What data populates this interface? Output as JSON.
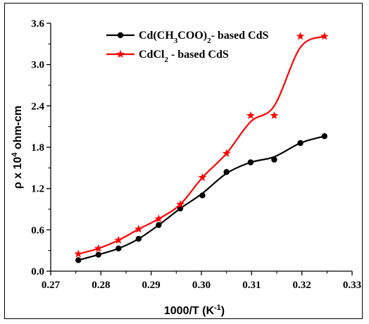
{
  "chart_data": {
    "type": "scatter",
    "xlabel": "1000/T (K",
    "xlabel_sup": "-1",
    "xlabel_end": ")",
    "ylabel_pre": "ρ x 10",
    "ylabel_sup": "4",
    "ylabel_post": " ohm-cm",
    "xlim": [
      0.27,
      0.33
    ],
    "ylim": [
      0.0,
      3.6
    ],
    "xticks": [
      0.27,
      0.28,
      0.29,
      0.3,
      0.31,
      0.32,
      0.33
    ],
    "xtick_labels": [
      "0.27",
      "0.28",
      "0.29",
      "0.30",
      "0.31",
      "0.32",
      "0.33"
    ],
    "yticks": [
      0.0,
      0.6,
      1.2,
      1.8,
      2.4,
      3.0,
      3.6
    ],
    "ytick_labels": [
      "0.0",
      "0.6",
      "1.2",
      "1.8",
      "2.4",
      "3.0",
      "3.6"
    ],
    "legend_position": "top-left",
    "series": [
      {
        "name": "Cd(CH3COO)2- based CdS",
        "legend_parts": [
          "Cd(CH",
          "3",
          "COO)",
          "2",
          "- based CdS"
        ],
        "color": "#000000",
        "marker": "circle",
        "points": [
          [
            0.2755,
            0.16
          ],
          [
            0.2795,
            0.24
          ],
          [
            0.2835,
            0.33
          ],
          [
            0.2875,
            0.47
          ],
          [
            0.2915,
            0.67
          ],
          [
            0.2958,
            0.91
          ],
          [
            0.3002,
            1.1
          ],
          [
            0.305,
            1.44
          ],
          [
            0.3098,
            1.58
          ],
          [
            0.3145,
            1.62
          ],
          [
            0.3197,
            1.86
          ],
          [
            0.3245,
            1.96
          ]
        ]
      },
      {
        "name": "CdCl2 - based CdS",
        "legend_parts": [
          "CdCl",
          "2",
          " - based CdS"
        ],
        "color": "#ff0000",
        "marker": "star",
        "points": [
          [
            0.2755,
            0.25
          ],
          [
            0.2795,
            0.33
          ],
          [
            0.2835,
            0.45
          ],
          [
            0.2875,
            0.61
          ],
          [
            0.2915,
            0.76
          ],
          [
            0.2958,
            0.97
          ],
          [
            0.3002,
            1.36
          ],
          [
            0.305,
            1.71
          ],
          [
            0.3098,
            2.26
          ],
          [
            0.3145,
            2.26
          ],
          [
            0.3197,
            3.41
          ],
          [
            0.3245,
            3.41
          ]
        ]
      }
    ],
    "fit_curves": [
      {
        "color": "#000000",
        "points": [
          [
            0.2755,
            0.16
          ],
          [
            0.2795,
            0.24
          ],
          [
            0.2835,
            0.33
          ],
          [
            0.2875,
            0.47
          ],
          [
            0.2915,
            0.67
          ],
          [
            0.2958,
            0.91
          ],
          [
            0.3002,
            1.13
          ],
          [
            0.305,
            1.42
          ],
          [
            0.3098,
            1.58
          ],
          [
            0.3145,
            1.66
          ],
          [
            0.3197,
            1.86
          ],
          [
            0.3245,
            1.96
          ]
        ]
      },
      {
        "color": "#ff0000",
        "points": [
          [
            0.2755,
            0.25
          ],
          [
            0.2795,
            0.33
          ],
          [
            0.2835,
            0.45
          ],
          [
            0.2875,
            0.61
          ],
          [
            0.2915,
            0.76
          ],
          [
            0.2958,
            0.97
          ],
          [
            0.3002,
            1.36
          ],
          [
            0.305,
            1.71
          ],
          [
            0.3098,
            2.17
          ],
          [
            0.3145,
            2.4
          ],
          [
            0.3197,
            3.25
          ],
          [
            0.3245,
            3.41
          ]
        ]
      }
    ]
  }
}
